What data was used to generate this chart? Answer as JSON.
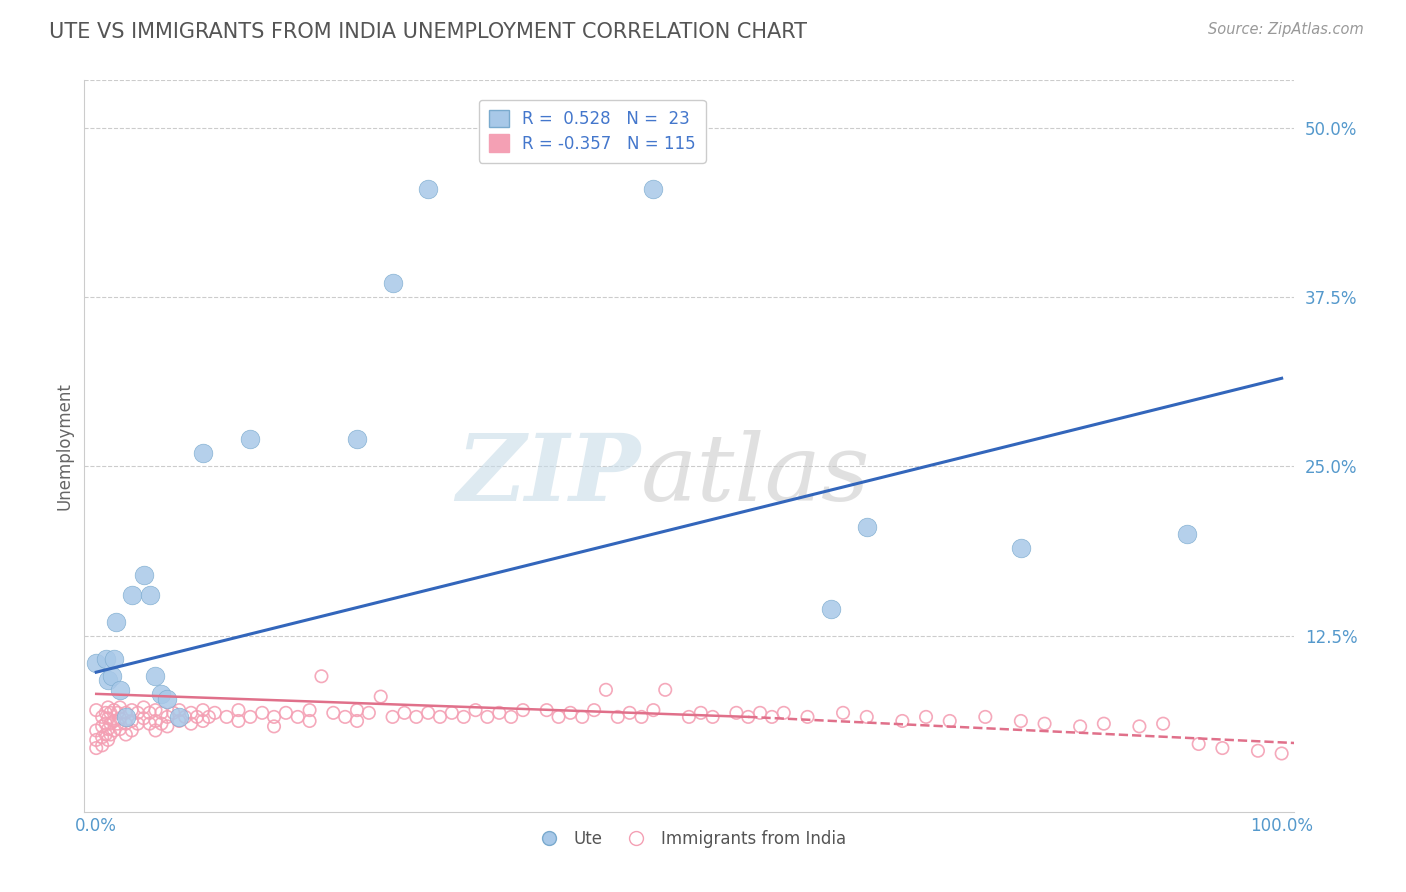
{
  "title": "UTE VS IMMIGRANTS FROM INDIA UNEMPLOYMENT CORRELATION CHART",
  "source_text": "Source: ZipAtlas.com",
  "ylabel": "Unemployment",
  "xlim": [
    -0.01,
    1.01
  ],
  "ylim": [
    -0.005,
    0.535
  ],
  "yticks": [
    0.125,
    0.25,
    0.375,
    0.5
  ],
  "ytick_labels": [
    "12.5%",
    "25.0%",
    "37.5%",
    "50.0%"
  ],
  "xticks": [
    0.0,
    1.0
  ],
  "xtick_labels": [
    "0.0%",
    "100.0%"
  ],
  "blue_color": "#a8c8e8",
  "blue_edge_color": "#7aaace",
  "pink_color": "#f4a0b4",
  "blue_line_color": "#3366bb",
  "pink_line_color": "#e0708a",
  "title_color": "#555555",
  "axis_label_color": "#5599cc",
  "grid_color": "#cccccc",
  "background_color": "#ffffff",
  "ute_points": [
    [
      0.0,
      0.105
    ],
    [
      0.008,
      0.108
    ],
    [
      0.01,
      0.092
    ],
    [
      0.013,
      0.095
    ],
    [
      0.015,
      0.108
    ],
    [
      0.017,
      0.135
    ],
    [
      0.02,
      0.085
    ],
    [
      0.025,
      0.065
    ],
    [
      0.03,
      0.155
    ],
    [
      0.04,
      0.17
    ],
    [
      0.045,
      0.155
    ],
    [
      0.05,
      0.095
    ],
    [
      0.055,
      0.082
    ],
    [
      0.06,
      0.078
    ],
    [
      0.07,
      0.065
    ],
    [
      0.09,
      0.26
    ],
    [
      0.13,
      0.27
    ],
    [
      0.22,
      0.27
    ],
    [
      0.25,
      0.385
    ],
    [
      0.28,
      0.455
    ],
    [
      0.47,
      0.455
    ],
    [
      0.62,
      0.145
    ],
    [
      0.65,
      0.205
    ],
    [
      0.78,
      0.19
    ],
    [
      0.92,
      0.2
    ]
  ],
  "india_points_cluster": [
    [
      0.0,
      0.07
    ],
    [
      0.0,
      0.055
    ],
    [
      0.0,
      0.048
    ],
    [
      0.0,
      0.042
    ],
    [
      0.005,
      0.065
    ],
    [
      0.005,
      0.058
    ],
    [
      0.005,
      0.05
    ],
    [
      0.005,
      0.044
    ],
    [
      0.008,
      0.068
    ],
    [
      0.008,
      0.06
    ],
    [
      0.008,
      0.052
    ],
    [
      0.01,
      0.072
    ],
    [
      0.01,
      0.064
    ],
    [
      0.01,
      0.056
    ],
    [
      0.01,
      0.048
    ],
    [
      0.012,
      0.068
    ],
    [
      0.012,
      0.06
    ],
    [
      0.012,
      0.052
    ],
    [
      0.015,
      0.07
    ],
    [
      0.015,
      0.062
    ],
    [
      0.015,
      0.055
    ],
    [
      0.018,
      0.068
    ],
    [
      0.018,
      0.06
    ],
    [
      0.02,
      0.072
    ],
    [
      0.02,
      0.064
    ],
    [
      0.02,
      0.056
    ],
    [
      0.025,
      0.068
    ],
    [
      0.025,
      0.06
    ],
    [
      0.025,
      0.052
    ],
    [
      0.03,
      0.07
    ],
    [
      0.03,
      0.062
    ],
    [
      0.03,
      0.055
    ],
    [
      0.035,
      0.068
    ],
    [
      0.035,
      0.06
    ],
    [
      0.04,
      0.072
    ],
    [
      0.04,
      0.064
    ],
    [
      0.045,
      0.068
    ],
    [
      0.045,
      0.06
    ],
    [
      0.05,
      0.07
    ],
    [
      0.05,
      0.062
    ],
    [
      0.05,
      0.055
    ],
    [
      0.055,
      0.068
    ],
    [
      0.055,
      0.06
    ],
    [
      0.06,
      0.065
    ],
    [
      0.06,
      0.058
    ],
    [
      0.065,
      0.068
    ],
    [
      0.07,
      0.07
    ],
    [
      0.07,
      0.062
    ],
    [
      0.075,
      0.065
    ],
    [
      0.08,
      0.068
    ],
    [
      0.08,
      0.06
    ],
    [
      0.085,
      0.065
    ],
    [
      0.09,
      0.07
    ],
    [
      0.09,
      0.062
    ],
    [
      0.095,
      0.065
    ],
    [
      0.1,
      0.068
    ],
    [
      0.11,
      0.065
    ],
    [
      0.12,
      0.07
    ],
    [
      0.12,
      0.062
    ],
    [
      0.13,
      0.065
    ],
    [
      0.14,
      0.068
    ],
    [
      0.15,
      0.065
    ],
    [
      0.15,
      0.058
    ],
    [
      0.16,
      0.068
    ],
    [
      0.17,
      0.065
    ],
    [
      0.18,
      0.07
    ],
    [
      0.18,
      0.062
    ],
    [
      0.19,
      0.095
    ],
    [
      0.2,
      0.068
    ],
    [
      0.21,
      0.065
    ],
    [
      0.22,
      0.07
    ],
    [
      0.22,
      0.062
    ],
    [
      0.23,
      0.068
    ],
    [
      0.24,
      0.08
    ],
    [
      0.25,
      0.065
    ],
    [
      0.26,
      0.068
    ],
    [
      0.27,
      0.065
    ],
    [
      0.28,
      0.068
    ],
    [
      0.29,
      0.065
    ],
    [
      0.3,
      0.068
    ],
    [
      0.31,
      0.065
    ],
    [
      0.32,
      0.07
    ],
    [
      0.33,
      0.065
    ],
    [
      0.34,
      0.068
    ],
    [
      0.35,
      0.065
    ],
    [
      0.36,
      0.07
    ],
    [
      0.38,
      0.07
    ],
    [
      0.39,
      0.065
    ],
    [
      0.4,
      0.068
    ],
    [
      0.41,
      0.065
    ],
    [
      0.42,
      0.07
    ],
    [
      0.43,
      0.085
    ],
    [
      0.44,
      0.065
    ],
    [
      0.45,
      0.068
    ],
    [
      0.46,
      0.065
    ],
    [
      0.47,
      0.07
    ],
    [
      0.48,
      0.085
    ],
    [
      0.5,
      0.065
    ],
    [
      0.51,
      0.068
    ],
    [
      0.52,
      0.065
    ],
    [
      0.54,
      0.068
    ],
    [
      0.55,
      0.065
    ],
    [
      0.56,
      0.068
    ],
    [
      0.57,
      0.065
    ],
    [
      0.58,
      0.068
    ],
    [
      0.6,
      0.065
    ],
    [
      0.63,
      0.068
    ],
    [
      0.65,
      0.065
    ],
    [
      0.68,
      0.062
    ],
    [
      0.7,
      0.065
    ],
    [
      0.72,
      0.062
    ],
    [
      0.75,
      0.065
    ],
    [
      0.78,
      0.062
    ],
    [
      0.8,
      0.06
    ],
    [
      0.83,
      0.058
    ],
    [
      0.85,
      0.06
    ],
    [
      0.88,
      0.058
    ],
    [
      0.9,
      0.06
    ],
    [
      0.93,
      0.045
    ],
    [
      0.95,
      0.042
    ],
    [
      0.98,
      0.04
    ],
    [
      1.0,
      0.038
    ]
  ],
  "ute_line": [
    [
      0.0,
      0.098
    ],
    [
      1.0,
      0.315
    ]
  ],
  "india_line_solid": [
    [
      0.0,
      0.082
    ],
    [
      0.55,
      0.065
    ]
  ],
  "india_line_dashed": [
    [
      0.55,
      0.065
    ],
    [
      1.1,
      0.042
    ]
  ]
}
